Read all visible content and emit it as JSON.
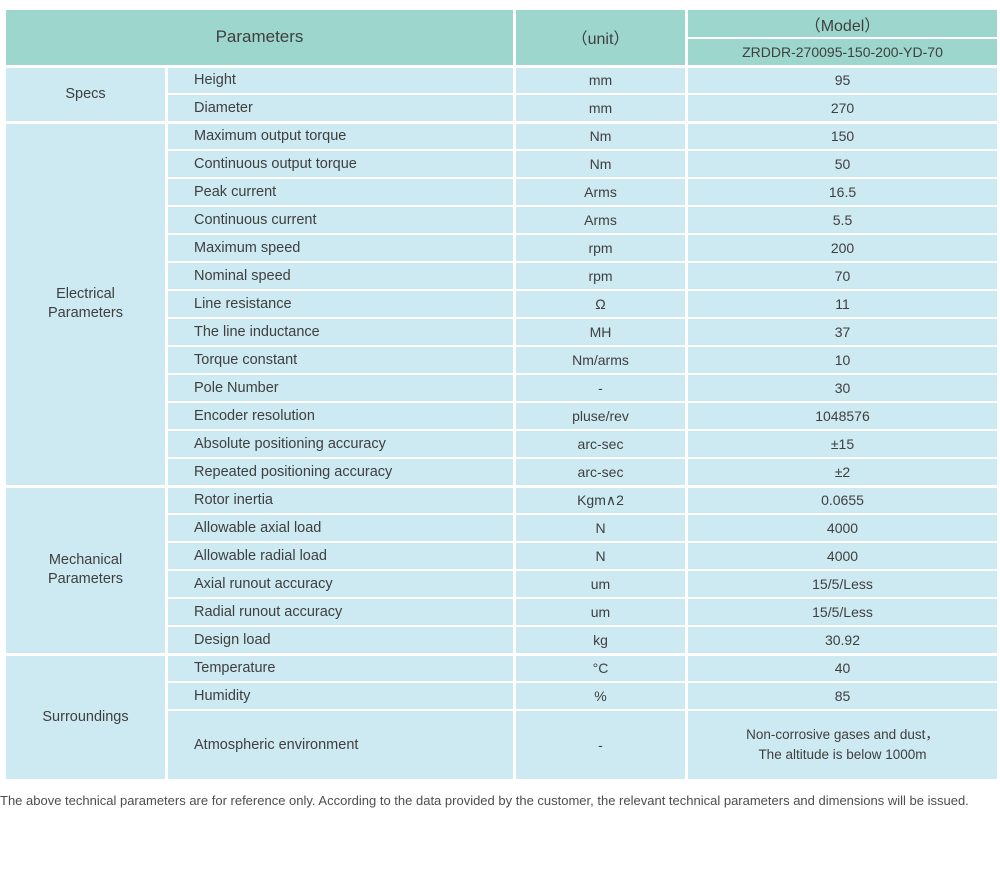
{
  "table": {
    "header": {
      "parameters_label": "Parameters",
      "unit_label": "（unit）",
      "model_label": "（Model）",
      "model_number": "ZRDDR-270095-150-200-YD-70"
    },
    "groups": [
      {
        "name": [
          "Specs"
        ],
        "rows": [
          {
            "param": "Height",
            "unit": "mm",
            "value": "95"
          },
          {
            "param": "Diameter",
            "unit": "mm",
            "value": "270"
          }
        ]
      },
      {
        "name": [
          "Electrical",
          "Parameters"
        ],
        "rows": [
          {
            "param": "Maximum output torque",
            "unit": "Nm",
            "value": "150"
          },
          {
            "param": "Continuous output torque",
            "unit": "Nm",
            "value": "50"
          },
          {
            "param": "Peak current",
            "unit": "Arms",
            "value": "16.5"
          },
          {
            "param": "Continuous current",
            "unit": "Arms",
            "value": "5.5"
          },
          {
            "param": "Maximum speed",
            "unit": "rpm",
            "value": "200"
          },
          {
            "param": "Nominal speed",
            "unit": "rpm",
            "value": "70"
          },
          {
            "param": "Line resistance",
            "unit": "Ω",
            "value": "11"
          },
          {
            "param": "The line inductance",
            "unit": "MH",
            "value": "37"
          },
          {
            "param": "Torque constant",
            "unit": "Nm/arms",
            "value": "10"
          },
          {
            "param": "Pole Number",
            "unit": "-",
            "value": "30"
          },
          {
            "param": "Encoder resolution",
            "unit": "pluse/rev",
            "value": "1048576"
          },
          {
            "param": "Absolute positioning accuracy",
            "unit": "arc-sec",
            "value": "±15"
          },
          {
            "param": "Repeated positioning accuracy",
            "unit": "arc-sec",
            "value": "±2"
          }
        ]
      },
      {
        "name": [
          "Mechanical",
          "Parameters"
        ],
        "rows": [
          {
            "param": "Rotor inertia",
            "unit": "Kgm∧2",
            "value": "0.0655"
          },
          {
            "param": "Allowable axial load",
            "unit": "N",
            "value": "4000"
          },
          {
            "param": "Allowable radial load",
            "unit": "N",
            "value": "4000"
          },
          {
            "param": "Axial runout accuracy",
            "unit": "um",
            "value": "15/5/Less"
          },
          {
            "param": "Radial runout accuracy",
            "unit": "um",
            "value": "15/5/Less"
          },
          {
            "param": "Design load",
            "unit": "kg",
            "value": "30.92"
          }
        ]
      },
      {
        "name": [
          "Surroundings"
        ],
        "rows": [
          {
            "param": "Temperature",
            "unit": "°C",
            "value": "40"
          },
          {
            "param": "Humidity",
            "unit": "%",
            "value": "85"
          },
          {
            "param": "Atmospheric environment",
            "unit": "-",
            "value": [
              "Non-corrosive gases and dust，",
              "The altitude is below 1000m"
            ],
            "tall": true
          }
        ]
      }
    ]
  },
  "footer": {
    "note": "The above technical parameters are for reference only. According to the data provided by the customer, the relevant technical parameters and dimensions will be issued."
  },
  "colors": {
    "header_bg": "#9cd6cd",
    "row_bg": "#cde9f1",
    "text": "#3f3f3f",
    "note_text": "#4d4d4d"
  }
}
